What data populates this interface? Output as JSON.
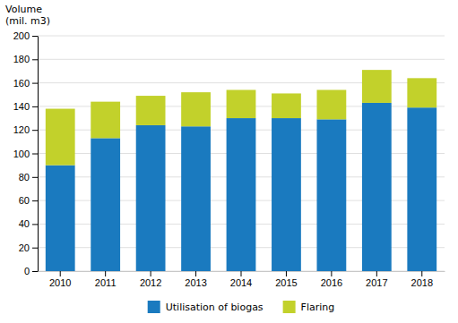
{
  "chart_data": {
    "type": "bar",
    "stacked": true,
    "ylabel": [
      "Volume",
      "(mil. m3)"
    ],
    "categories": [
      "2010",
      "2011",
      "2012",
      "2013",
      "2014",
      "2015",
      "2016",
      "2017",
      "2018"
    ],
    "series": [
      {
        "name": "Utilisation of biogas",
        "color": "#1a7abf",
        "values": [
          90,
          113,
          124,
          123,
          130,
          130,
          129,
          143,
          139
        ]
      },
      {
        "name": "Flaring",
        "color": "#c2d12b",
        "values": [
          48,
          31,
          25,
          29,
          24,
          21,
          25,
          28,
          25
        ]
      }
    ],
    "ylim": [
      0,
      200
    ],
    "yticks": [
      0,
      20,
      40,
      60,
      80,
      100,
      120,
      140,
      160,
      180,
      200
    ],
    "grid": true,
    "legend": "bottom"
  }
}
